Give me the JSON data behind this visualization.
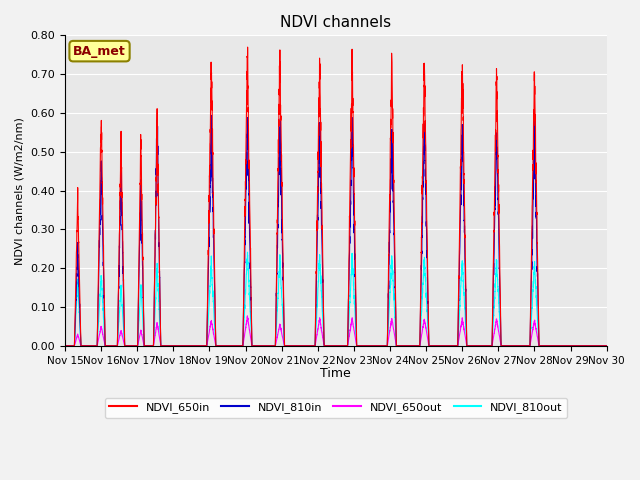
{
  "title": "NDVI channels",
  "ylabel": "NDVI channels (W/m2/nm)",
  "xlabel": "Time",
  "annotation": "BA_met",
  "ylim": [
    0.0,
    0.8
  ],
  "yticks": [
    0.0,
    0.1,
    0.2,
    0.3,
    0.4,
    0.5,
    0.6,
    0.7,
    0.8
  ],
  "xtick_labels": [
    "Nov 15",
    "Nov 16",
    "Nov 17",
    "Nov 18",
    "Nov 19",
    "Nov 20",
    "Nov 21",
    "Nov 22",
    "Nov 23",
    "Nov 24",
    "Nov 25",
    "Nov 26",
    "Nov 27",
    "Nov 28",
    "Nov 29",
    "Nov 30"
  ],
  "colors": {
    "NDVI_650in": "#ff0000",
    "NDVI_810in": "#0000cc",
    "NDVI_650out": "#ff00ff",
    "NDVI_810out": "#00ffff"
  },
  "legend_labels": [
    "NDVI_650in",
    "NDVI_810in",
    "NDVI_650out",
    "NDVI_810out"
  ],
  "plot_bg": "#e8e8e8",
  "fig_bg": "#f2f2f2",
  "spike_centers": [
    0.35,
    1.0,
    1.55,
    2.1,
    2.55,
    4.05,
    5.05,
    5.95,
    7.05,
    7.95,
    9.05,
    9.95,
    11.0,
    11.95,
    13.0
  ],
  "spike_widths": [
    0.18,
    0.22,
    0.2,
    0.18,
    0.2,
    0.25,
    0.25,
    0.25,
    0.25,
    0.25,
    0.25,
    0.25,
    0.25,
    0.25,
    0.25
  ],
  "spike_peaks_650in": [
    0.38,
    0.6,
    0.54,
    0.54,
    0.58,
    0.72,
    0.75,
    0.75,
    0.73,
    0.74,
    0.74,
    0.74,
    0.73,
    0.71,
    0.7
  ],
  "spike_peaks_810in": [
    0.25,
    0.46,
    0.44,
    0.43,
    0.58,
    0.57,
    0.58,
    0.58,
    0.57,
    0.57,
    0.57,
    0.57,
    0.56,
    0.55,
    0.54
  ],
  "spike_peaks_650out": [
    0.03,
    0.05,
    0.04,
    0.04,
    0.06,
    0.065,
    0.075,
    0.055,
    0.07,
    0.07,
    0.07,
    0.07,
    0.07,
    0.07,
    0.065
  ],
  "spike_peaks_810out": [
    0.17,
    0.18,
    0.15,
    0.16,
    0.21,
    0.21,
    0.24,
    0.22,
    0.23,
    0.23,
    0.23,
    0.23,
    0.22,
    0.22,
    0.21
  ]
}
